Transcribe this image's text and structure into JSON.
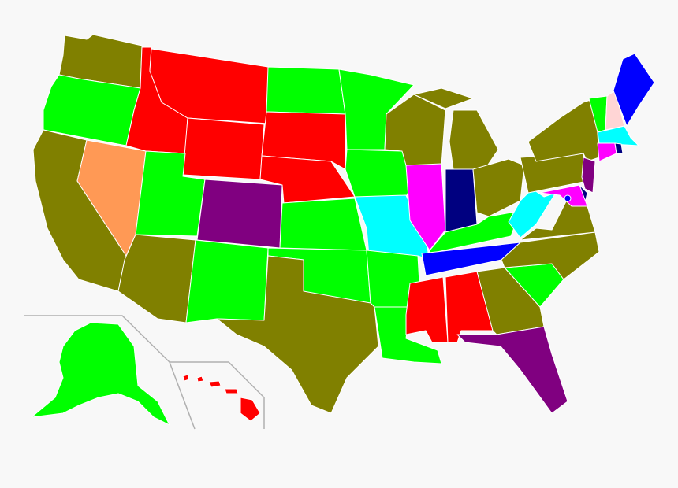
{
  "map": {
    "type": "choropleth",
    "region": "United States",
    "palette": {
      "olive": "#808000",
      "lime": "#00ff00",
      "red": "#ff0000",
      "purple": "#800080",
      "magenta": "#ff00ff",
      "cyan": "#00ffff",
      "blue": "#0000ff",
      "navy": "#000080",
      "orange": "#ff9955",
      "pink": "#ffd5d5"
    },
    "states": {
      "WA": "olive",
      "OR": "lime",
      "CA": "olive",
      "NV": "orange",
      "ID": "red",
      "MT": "red",
      "WY": "red",
      "UT": "lime",
      "CO": "purple",
      "AZ": "olive",
      "NM": "lime",
      "ND": "lime",
      "SD": "red",
      "NE": "red",
      "KS": "lime",
      "OK": "lime",
      "TX": "olive",
      "MN": "lime",
      "IA": "lime",
      "MO": "cyan",
      "AR": "lime",
      "LA": "lime",
      "WI": "olive",
      "IL": "magenta",
      "MI": "olive",
      "IN": "navy",
      "OH": "olive",
      "KY": "lime",
      "TN": "blue",
      "MS": "red",
      "AL": "red",
      "GA": "olive",
      "FL": "purple",
      "SC": "lime",
      "NC": "olive",
      "VA": "olive",
      "WV": "cyan",
      "PA": "olive",
      "NY": "olive",
      "VT": "lime",
      "NH": "pink",
      "ME": "blue",
      "MA": "cyan",
      "CT": "magenta",
      "RI": "navy",
      "NJ": "purple",
      "DE": "navy",
      "MD": "magenta",
      "DC": "blue",
      "AK": "lime",
      "HI": "red"
    }
  }
}
